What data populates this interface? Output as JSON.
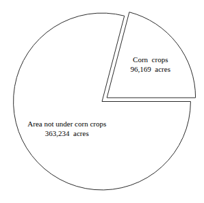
{
  "chart_data": {
    "type": "pie",
    "categories": [
      "Area not under corn crops",
      "Corn  crops"
    ],
    "values": [
      363234,
      96169
    ],
    "value_labels": [
      "363,234  acres",
      "96,169  acres"
    ],
    "data_labels": true,
    "colors": [
      "#ffffff",
      "#ffffff"
    ]
  }
}
